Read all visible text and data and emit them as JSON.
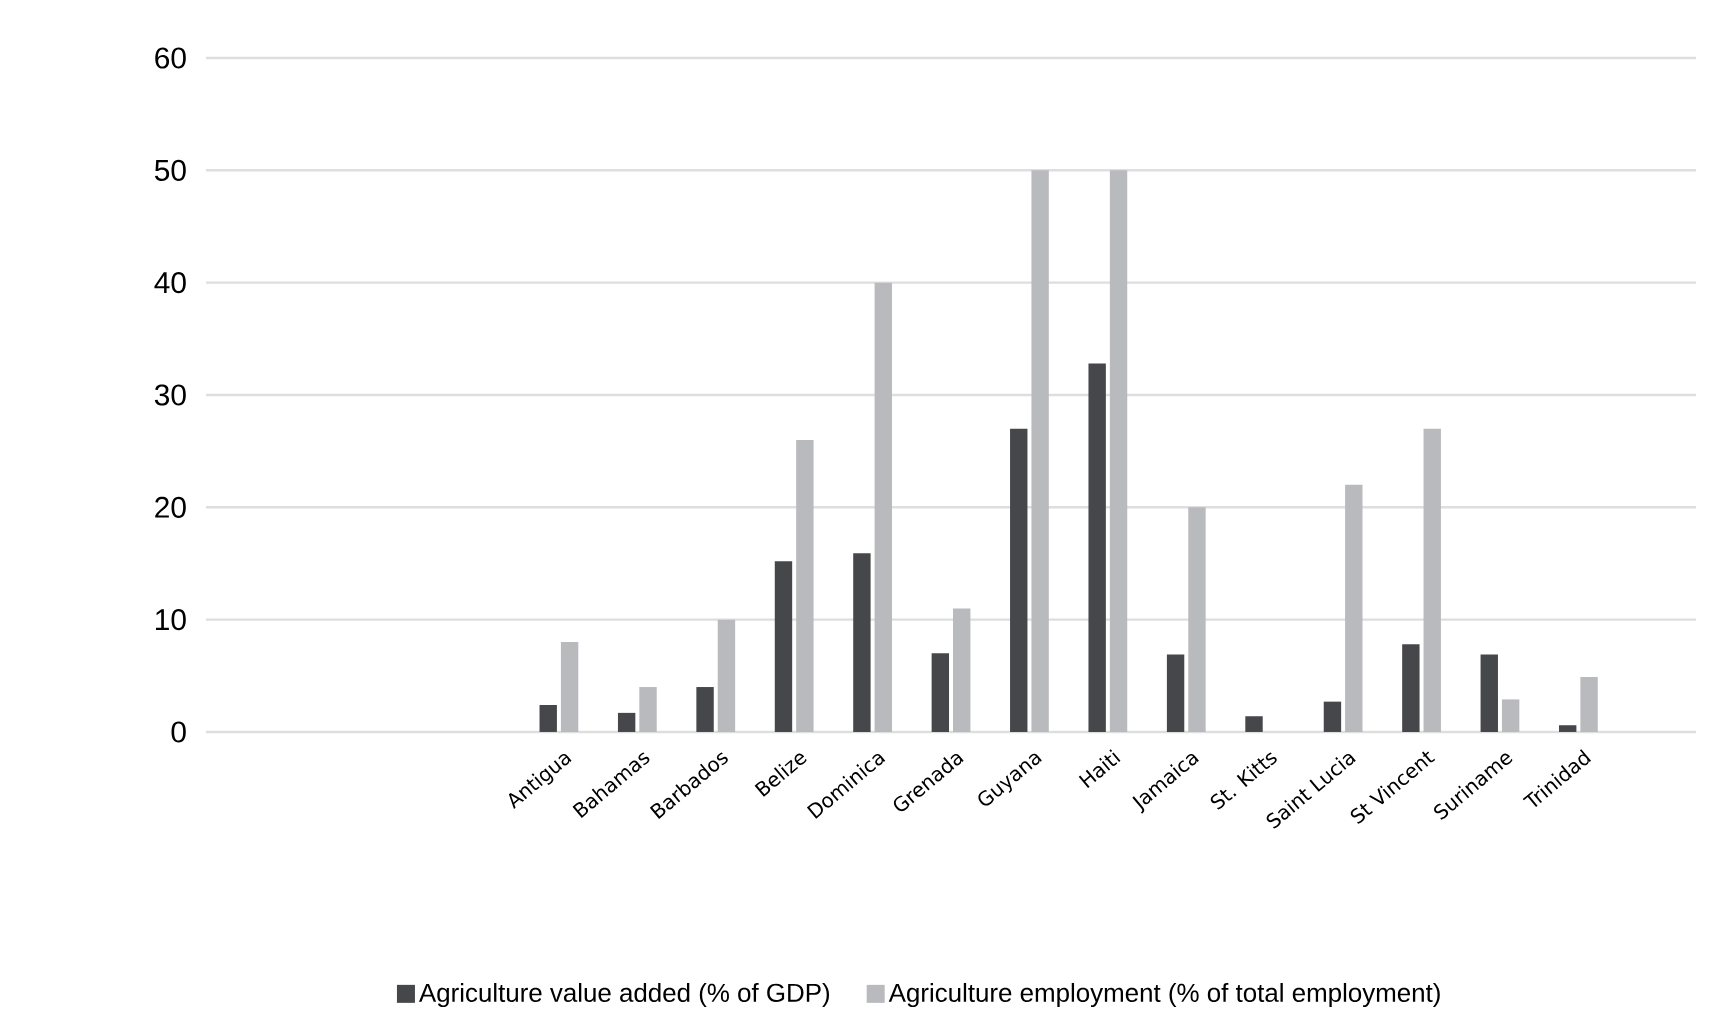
{
  "chart_data": {
    "type": "bar",
    "categories": [
      null,
      null,
      null,
      null,
      "Antigua",
      "Bahamas",
      "Barbados",
      "Belize",
      "Dominica",
      "Grenada",
      "Guyana",
      "Haiti",
      "Jamaica",
      "St. Kitts",
      "Saint Lucia",
      "St Vincent",
      "Suriname",
      "Trinidad",
      null
    ],
    "series": [
      {
        "name": "Agriculture value added (% of GDP)",
        "color": "#46474a",
        "values": [
          null,
          null,
          null,
          null,
          2.4,
          1.7,
          4,
          15.2,
          15.9,
          7,
          27,
          32.8,
          6.9,
          1.4,
          2.7,
          7.8,
          6.9,
          0.6,
          null
        ]
      },
      {
        "name": "Agriculture employment (% of total employment)",
        "color": "#b9babd",
        "values": [
          null,
          null,
          null,
          null,
          8,
          4,
          10,
          26,
          40,
          11,
          50,
          50,
          20,
          null,
          22,
          27,
          2.9,
          4.9,
          null
        ]
      }
    ],
    "ylim": [
      0,
      60
    ],
    "yticks": [
      0,
      10,
      20,
      30,
      40,
      50,
      60
    ],
    "grid": "y",
    "legend": "bottom"
  }
}
